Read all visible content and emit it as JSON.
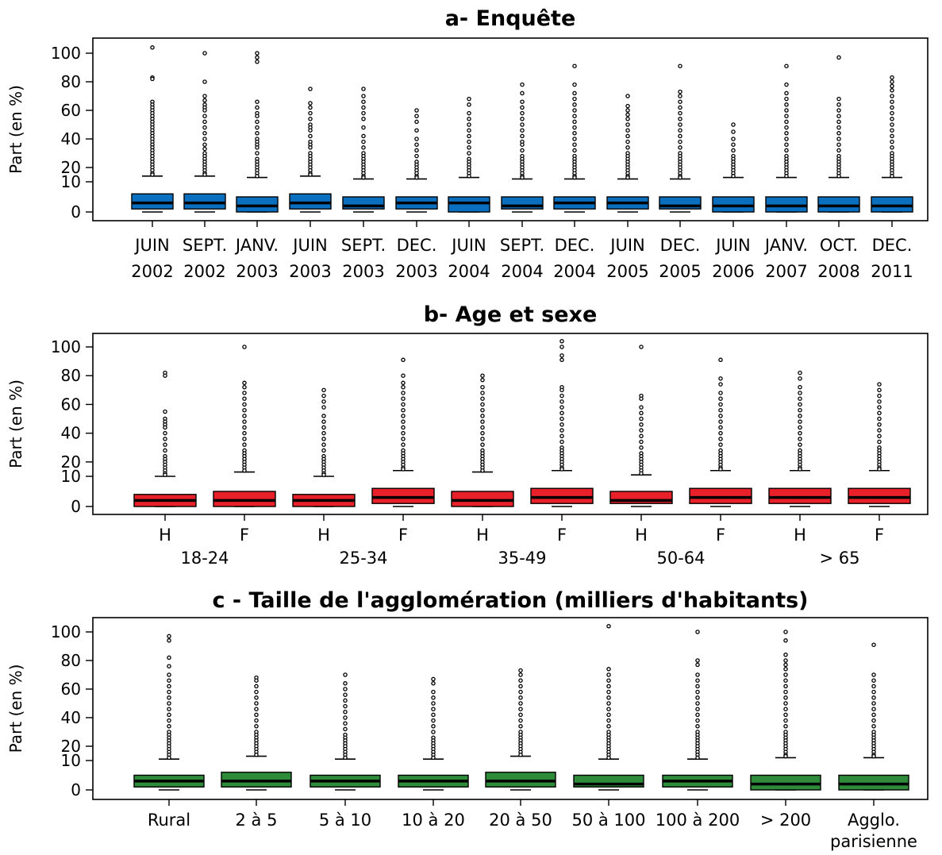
{
  "y_axis_label": "Part (en %)",
  "y_ticks": [
    "0",
    "10",
    "20",
    "40",
    "60",
    "80",
    "100"
  ],
  "chart_data": [
    {
      "type": "box",
      "title": "a- Enquête",
      "ylabel": "Part (en %)",
      "color": "#0a6fbf",
      "category_lines": [
        [
          "JUIN",
          "2002"
        ],
        [
          "SEPT.",
          "2002"
        ],
        [
          "JANV.",
          "2003"
        ],
        [
          "JUIN",
          "2003"
        ],
        [
          "SEPT.",
          "2003"
        ],
        [
          "DEC.",
          "2003"
        ],
        [
          "JUIN",
          "2004"
        ],
        [
          "SEPT.",
          "2004"
        ],
        [
          "DEC.",
          "2004"
        ],
        [
          "JUIN",
          "2005"
        ],
        [
          "DEC.",
          "2005"
        ],
        [
          "JUIN",
          "2006"
        ],
        [
          "JANV.",
          "2007"
        ],
        [
          "OCT.",
          "2008"
        ],
        [
          "DEC.",
          "2011"
        ]
      ],
      "boxes": [
        {
          "lo": 0,
          "q1": 1,
          "med": 3,
          "q3": 6,
          "hi": 14,
          "outliers": [
            104,
            83,
            82,
            66,
            64,
            62,
            60,
            58,
            56,
            54,
            52,
            50,
            48,
            46,
            44,
            42,
            40,
            38,
            36,
            34,
            32,
            30,
            28,
            26,
            24,
            22,
            20,
            18,
            16,
            15
          ]
        },
        {
          "lo": 0,
          "q1": 1,
          "med": 3,
          "q3": 6,
          "hi": 14,
          "outliers": [
            100,
            80,
            70,
            67,
            64,
            62,
            60,
            56,
            52,
            48,
            44,
            40,
            36,
            33,
            30,
            28,
            26,
            24,
            22,
            20,
            18,
            16,
            15
          ]
        },
        {
          "lo": 0,
          "q1": 0,
          "med": 2,
          "q3": 5,
          "hi": 13,
          "outliers": [
            100,
            97,
            94,
            66,
            62,
            58,
            56,
            52,
            48,
            44,
            40,
            38,
            36,
            34,
            30,
            26,
            24,
            22,
            20,
            18,
            16,
            14
          ]
        },
        {
          "lo": 0,
          "q1": 1,
          "med": 3,
          "q3": 6,
          "hi": 14,
          "outliers": [
            75,
            65,
            62,
            58,
            54,
            50,
            48,
            46,
            42,
            38,
            36,
            34,
            30,
            28,
            26,
            24,
            22,
            20,
            18,
            16,
            15
          ]
        },
        {
          "lo": 0,
          "q1": 1,
          "med": 2,
          "q3": 5,
          "hi": 12,
          "outliers": [
            75,
            70,
            66,
            62,
            58,
            54,
            48,
            42,
            38,
            34,
            30,
            28,
            26,
            24,
            22,
            20,
            18,
            16,
            14,
            13
          ]
        },
        {
          "lo": 0,
          "q1": 1,
          "med": 3,
          "q3": 5,
          "hi": 12,
          "outliers": [
            60,
            56,
            52,
            46,
            40,
            36,
            32,
            28,
            24,
            22,
            20,
            18,
            16,
            14,
            13
          ]
        },
        {
          "lo": 0,
          "q1": 0,
          "med": 3,
          "q3": 5,
          "hi": 13,
          "outliers": [
            68,
            64,
            58,
            54,
            50,
            46,
            42,
            38,
            34,
            30,
            26,
            24,
            22,
            20,
            18,
            16,
            14
          ]
        },
        {
          "lo": 0,
          "q1": 1,
          "med": 2,
          "q3": 5,
          "hi": 12,
          "outliers": [
            78,
            72,
            66,
            62,
            58,
            54,
            50,
            46,
            42,
            38,
            36,
            32,
            28,
            26,
            24,
            22,
            20,
            18,
            16,
            14,
            13
          ]
        },
        {
          "lo": 0,
          "q1": 1,
          "med": 3,
          "q3": 5,
          "hi": 12,
          "outliers": [
            91,
            78,
            72,
            68,
            64,
            60,
            56,
            52,
            48,
            44,
            40,
            36,
            32,
            28,
            26,
            24,
            22,
            20,
            18,
            16,
            14,
            13
          ]
        },
        {
          "lo": 0,
          "q1": 1,
          "med": 3,
          "q3": 5,
          "hi": 12,
          "outliers": [
            70,
            63,
            60,
            57,
            54,
            50,
            46,
            42,
            38,
            34,
            30,
            28,
            26,
            24,
            22,
            20,
            18,
            16,
            14,
            13
          ]
        },
        {
          "lo": 0,
          "q1": 1,
          "med": 2,
          "q3": 5,
          "hi": 12,
          "outliers": [
            91,
            73,
            70,
            66,
            62,
            58,
            54,
            50,
            46,
            42,
            38,
            34,
            30,
            28,
            26,
            24,
            22,
            20,
            18,
            16,
            14,
            13
          ]
        },
        {
          "lo": 0,
          "q1": 0,
          "med": 2,
          "q3": 5,
          "hi": 13,
          "outliers": [
            50,
            45,
            40,
            36,
            32,
            28,
            26,
            24,
            22,
            20,
            18,
            16,
            14
          ]
        },
        {
          "lo": 0,
          "q1": 0,
          "med": 2,
          "q3": 5,
          "hi": 13,
          "outliers": [
            91,
            78,
            72,
            68,
            64,
            60,
            56,
            52,
            48,
            44,
            40,
            36,
            32,
            28,
            26,
            24,
            22,
            20,
            18,
            16,
            14
          ]
        },
        {
          "lo": 0,
          "q1": 0,
          "med": 2,
          "q3": 5,
          "hi": 13,
          "outliers": [
            97,
            68,
            64,
            60,
            56,
            52,
            48,
            44,
            40,
            36,
            32,
            28,
            26,
            24,
            22,
            20,
            18,
            16,
            14
          ]
        },
        {
          "lo": 0,
          "q1": 0,
          "med": 2,
          "q3": 5,
          "hi": 13,
          "outliers": [
            83,
            80,
            77,
            74,
            70,
            66,
            62,
            58,
            54,
            50,
            46,
            42,
            38,
            34,
            30,
            28,
            26,
            24,
            22,
            20,
            18,
            16,
            14
          ]
        }
      ]
    },
    {
      "type": "box",
      "title": "b- Age et sexe",
      "ylabel": "Part (en %)",
      "color": "#e8202a",
      "categories": [
        "H",
        "F",
        "H",
        "F",
        "H",
        "F",
        "H",
        "F",
        "H",
        "F"
      ],
      "group_labels": [
        "18-24",
        "25-34",
        "35-49",
        "50-64",
        "> 65"
      ],
      "boxes": [
        {
          "lo": 0,
          "q1": 0,
          "med": 2,
          "q3": 4,
          "hi": 10,
          "outliers": [
            82,
            80,
            55,
            50,
            48,
            46,
            44,
            40,
            36,
            32,
            28,
            24,
            22,
            20,
            18,
            16,
            14,
            12,
            11
          ]
        },
        {
          "lo": 0,
          "q1": 0,
          "med": 2,
          "q3": 5,
          "hi": 13,
          "outliers": [
            100,
            75,
            72,
            68,
            64,
            60,
            56,
            52,
            48,
            44,
            40,
            36,
            32,
            28,
            26,
            24,
            22,
            20,
            18,
            16,
            14
          ]
        },
        {
          "lo": 0,
          "q1": 0,
          "med": 2,
          "q3": 4,
          "hi": 10,
          "outliers": [
            70,
            66,
            62,
            58,
            52,
            48,
            44,
            40,
            36,
            32,
            28,
            24,
            22,
            20,
            18,
            16,
            14,
            12,
            11
          ]
        },
        {
          "lo": 0,
          "q1": 1,
          "med": 3,
          "q3": 6,
          "hi": 14,
          "outliers": [
            91,
            80,
            75,
            72,
            68,
            64,
            60,
            56,
            52,
            48,
            44,
            40,
            36,
            32,
            28,
            26,
            24,
            22,
            20,
            18,
            16,
            15
          ]
        },
        {
          "lo": 0,
          "q1": 0,
          "med": 2,
          "q3": 5,
          "hi": 13,
          "outliers": [
            80,
            77,
            72,
            68,
            64,
            60,
            56,
            52,
            48,
            44,
            40,
            36,
            32,
            28,
            26,
            24,
            22,
            20,
            18,
            16,
            14
          ]
        },
        {
          "lo": 0,
          "q1": 1,
          "med": 3,
          "q3": 6,
          "hi": 14,
          "outliers": [
            104,
            100,
            94,
            91,
            72,
            70,
            66,
            62,
            58,
            54,
            50,
            46,
            42,
            38,
            34,
            30,
            28,
            26,
            24,
            22,
            20,
            18,
            16,
            15
          ]
        },
        {
          "lo": 0,
          "q1": 1,
          "med": 2,
          "q3": 5,
          "hi": 11,
          "outliers": [
            100,
            66,
            64,
            58,
            54,
            50,
            46,
            42,
            38,
            34,
            30,
            26,
            24,
            22,
            20,
            18,
            16,
            14,
            12
          ]
        },
        {
          "lo": 0,
          "q1": 1,
          "med": 3,
          "q3": 6,
          "hi": 14,
          "outliers": [
            91,
            78,
            74,
            68,
            64,
            60,
            56,
            52,
            48,
            44,
            40,
            36,
            32,
            28,
            26,
            24,
            22,
            20,
            18,
            16,
            15
          ]
        },
        {
          "lo": 0,
          "q1": 1,
          "med": 3,
          "q3": 6,
          "hi": 14,
          "outliers": [
            82,
            78,
            72,
            68,
            64,
            60,
            56,
            52,
            48,
            44,
            40,
            36,
            32,
            28,
            26,
            24,
            22,
            20,
            18,
            16,
            15
          ]
        },
        {
          "lo": 0,
          "q1": 1,
          "med": 3,
          "q3": 6,
          "hi": 14,
          "outliers": [
            74,
            70,
            66,
            62,
            58,
            54,
            50,
            46,
            42,
            38,
            34,
            30,
            28,
            26,
            24,
            22,
            20,
            18,
            16,
            15
          ]
        }
      ]
    },
    {
      "type": "box",
      "title": "c - Taille de l'agglomération (milliers d'habitants)",
      "ylabel": "Part (en %)",
      "color": "#2e8b3a",
      "category_lines": [
        [
          "Rural"
        ],
        [
          "2 à 5"
        ],
        [
          "5 à 10"
        ],
        [
          "10 à 20"
        ],
        [
          "20 à 50"
        ],
        [
          "50 à 100"
        ],
        [
          "100 à 200"
        ],
        [
          "> 200"
        ],
        [
          "Agglo.",
          "parisienne"
        ]
      ],
      "boxes": [
        {
          "lo": 0,
          "q1": 1,
          "med": 3,
          "q3": 5,
          "hi": 11,
          "outliers": [
            97,
            94,
            82,
            76,
            70,
            66,
            62,
            58,
            54,
            50,
            46,
            42,
            38,
            34,
            30,
            28,
            26,
            24,
            22,
            20,
            18,
            16,
            14,
            12
          ]
        },
        {
          "lo": 0,
          "q1": 1,
          "med": 3,
          "q3": 6,
          "hi": 13,
          "outliers": [
            68,
            66,
            62,
            58,
            54,
            50,
            46,
            42,
            38,
            34,
            30,
            28,
            26,
            24,
            22,
            20,
            18,
            16,
            14
          ]
        },
        {
          "lo": 0,
          "q1": 1,
          "med": 3,
          "q3": 5,
          "hi": 11,
          "outliers": [
            70,
            64,
            60,
            56,
            52,
            48,
            44,
            40,
            36,
            32,
            28,
            26,
            24,
            22,
            20,
            18,
            16,
            14,
            12
          ]
        },
        {
          "lo": 0,
          "q1": 1,
          "med": 3,
          "q3": 5,
          "hi": 11,
          "outliers": [
            67,
            64,
            58,
            54,
            50,
            46,
            42,
            38,
            34,
            30,
            26,
            24,
            22,
            20,
            18,
            16,
            14,
            12
          ]
        },
        {
          "lo": 0,
          "q1": 1,
          "med": 3,
          "q3": 6,
          "hi": 13,
          "outliers": [
            73,
            70,
            66,
            62,
            58,
            54,
            50,
            46,
            42,
            38,
            34,
            30,
            28,
            26,
            24,
            22,
            20,
            18,
            16,
            14
          ]
        },
        {
          "lo": 0,
          "q1": 1,
          "med": 2,
          "q3": 5,
          "hi": 11,
          "outliers": [
            104,
            74,
            70,
            66,
            62,
            58,
            54,
            50,
            46,
            42,
            38,
            34,
            30,
            28,
            26,
            24,
            22,
            20,
            18,
            16,
            14,
            12
          ]
        },
        {
          "lo": 0,
          "q1": 1,
          "med": 3,
          "q3": 5,
          "hi": 11,
          "outliers": [
            100,
            80,
            77,
            70,
            66,
            62,
            58,
            54,
            50,
            46,
            42,
            38,
            34,
            30,
            28,
            26,
            24,
            22,
            20,
            18,
            16,
            14,
            12
          ]
        },
        {
          "lo": 0,
          "q1": 0,
          "med": 2,
          "q3": 5,
          "hi": 12,
          "outliers": [
            100,
            94,
            84,
            80,
            77,
            74,
            70,
            66,
            62,
            58,
            54,
            50,
            46,
            42,
            38,
            34,
            30,
            28,
            26,
            24,
            22,
            20,
            18,
            16,
            14,
            13
          ]
        },
        {
          "lo": 0,
          "q1": 0,
          "med": 2,
          "q3": 5,
          "hi": 12,
          "outliers": [
            91,
            70,
            66,
            62,
            58,
            54,
            50,
            46,
            42,
            38,
            34,
            30,
            28,
            26,
            24,
            22,
            20,
            18,
            16,
            14,
            13
          ]
        }
      ]
    }
  ]
}
